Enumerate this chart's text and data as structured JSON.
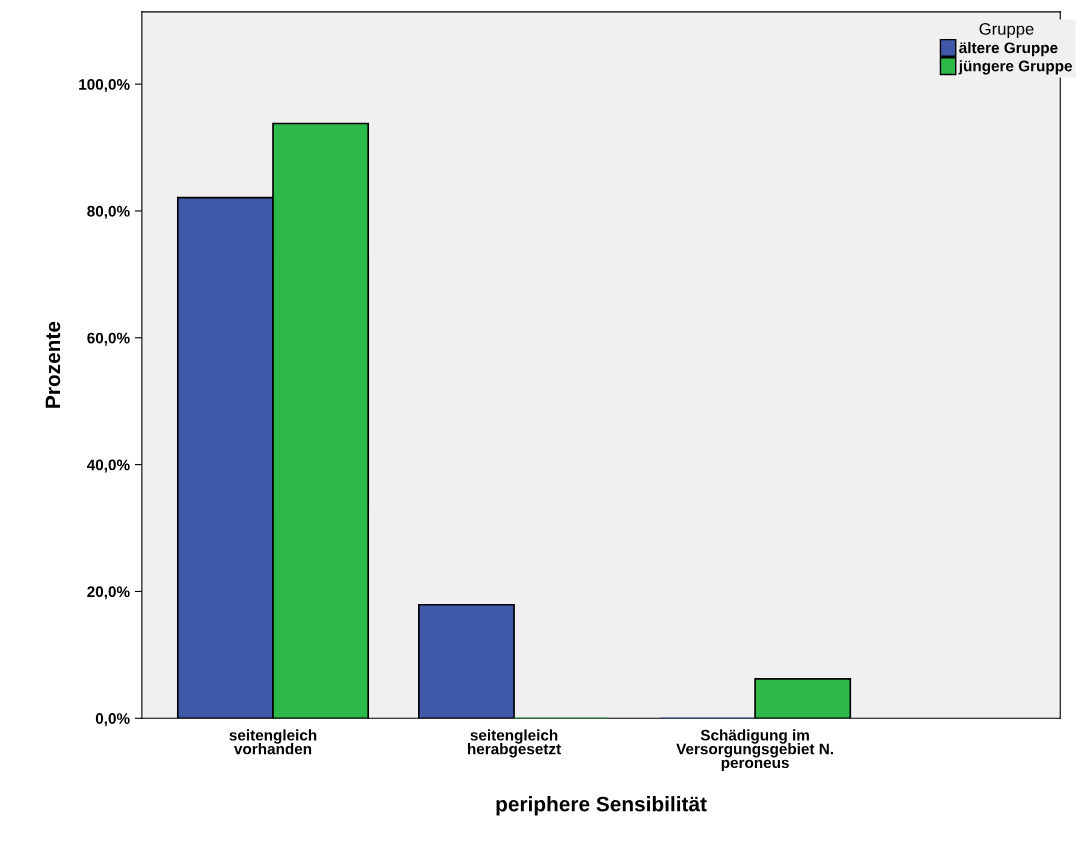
{
  "chart_data": {
    "type": "bar",
    "xlabel": "periphere Sensibilität",
    "ylabel": "Prozente",
    "legend_title": "Gruppe",
    "legend": "top right",
    "grid": false,
    "categories": [
      "seitengleich\nvorhanden",
      "seitengleich\nherabgesetzt",
      "Schädigung im\nVersorgungsgebiet N.\nperoneus"
    ],
    "series": [
      {
        "name": "ältere Gruppe",
        "color": "#3f58a8",
        "values": [
          82.1,
          17.9,
          0
        ]
      },
      {
        "name": "jüngere Gruppe",
        "color": "#2db84a",
        "values": [
          93.8,
          0,
          6.2
        ]
      }
    ],
    "ylim": [
      0,
      111.4
    ],
    "yticks": [
      {
        "value": 0,
        "label": "0,0%"
      },
      {
        "value": 20,
        "label": "20,0%"
      },
      {
        "value": 40,
        "label": "40,0%"
      },
      {
        "value": 60,
        "label": "60,0%"
      },
      {
        "value": 80,
        "label": "80,0%"
      },
      {
        "value": 100,
        "label": "100,0%"
      }
    ]
  }
}
